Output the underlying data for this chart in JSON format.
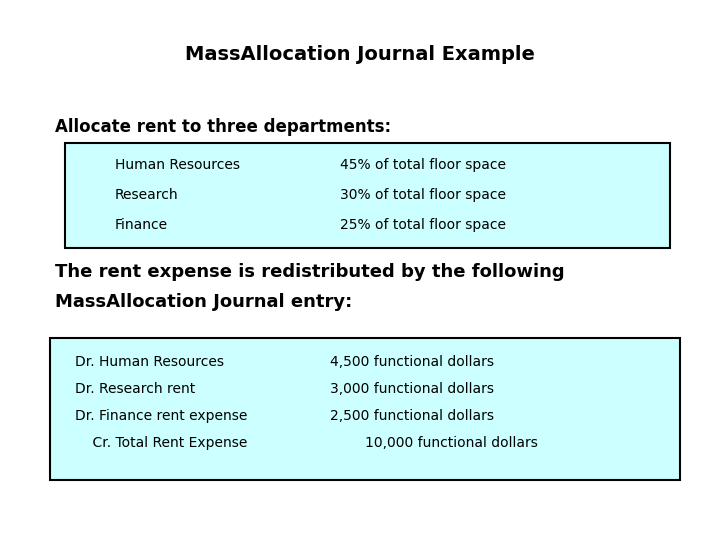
{
  "title": "MassAllocation Journal Example",
  "subtitle": "Allocate rent to three departments:",
  "box1_lines": [
    [
      "Human Resources",
      "45% of total floor space"
    ],
    [
      "Research",
      "30% of total floor space"
    ],
    [
      "Finance",
      "25% of total floor space"
    ]
  ],
  "middle_text_line1": "The rent expense is redistributed by the following",
  "middle_text_line2": "MassAllocation Journal entry:",
  "box2_lines": [
    [
      "Dr. Human Resources",
      "4,500 functional dollars"
    ],
    [
      "Dr. Research rent",
      "3,000 functional dollars"
    ],
    [
      "Dr. Finance rent expense",
      "2,500 functional dollars"
    ],
    [
      "    Cr. Total Rent Expense",
      "        10,000 functional dollars"
    ]
  ],
  "bg_color": "#ffffff",
  "box_bg": "#ccffff",
  "box_border": "#000000",
  "title_fontsize": 14,
  "subtitle_fontsize": 12,
  "body_fontsize": 10,
  "middle_fontsize": 13
}
